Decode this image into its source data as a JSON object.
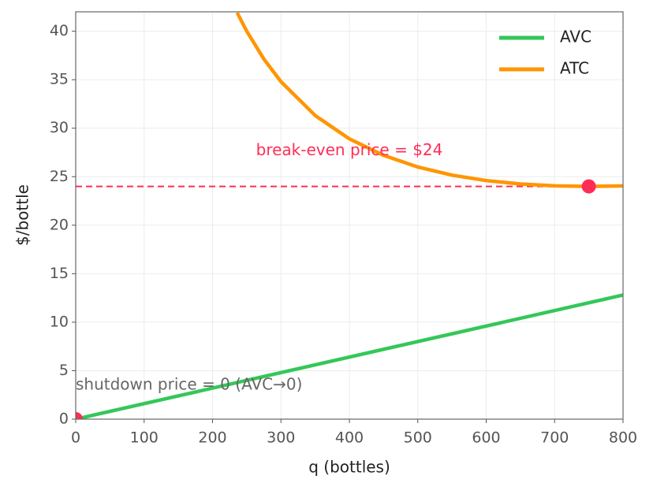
{
  "chart_data": {
    "type": "line",
    "xlabel": "q (bottles)",
    "ylabel": "$/bottle",
    "xlim": [
      0,
      800
    ],
    "ylim": [
      0,
      42
    ],
    "xticks": [
      0,
      100,
      200,
      300,
      400,
      500,
      600,
      700,
      800
    ],
    "yticks": [
      0,
      5,
      10,
      15,
      20,
      25,
      30,
      35,
      40
    ],
    "grid": true,
    "legend": "upper right",
    "series": [
      {
        "name": "AVC",
        "color": "#34c759",
        "x": [
          0,
          800
        ],
        "values": [
          0,
          12.8
        ]
      },
      {
        "name": "ATC",
        "color": "#ff9500",
        "x": [
          236,
          250,
          275,
          300,
          350,
          400,
          450,
          500,
          550,
          600,
          650,
          700,
          750,
          800
        ],
        "values": [
          41.91,
          40,
          37.13,
          34.8,
          31.31,
          28.9,
          27.2,
          26,
          25.16,
          24.6,
          24.25,
          24.06,
          24,
          24.05
        ]
      }
    ],
    "break_even": {
      "value": 24,
      "label": "break-even price = $24",
      "color": "#ff2d55"
    },
    "markers": {
      "color": "#ff2d55",
      "x": [
        750,
        0
      ],
      "values": [
        24,
        0
      ]
    },
    "shutdown_label": "shutdown price = 0 (AVC→0)"
  }
}
